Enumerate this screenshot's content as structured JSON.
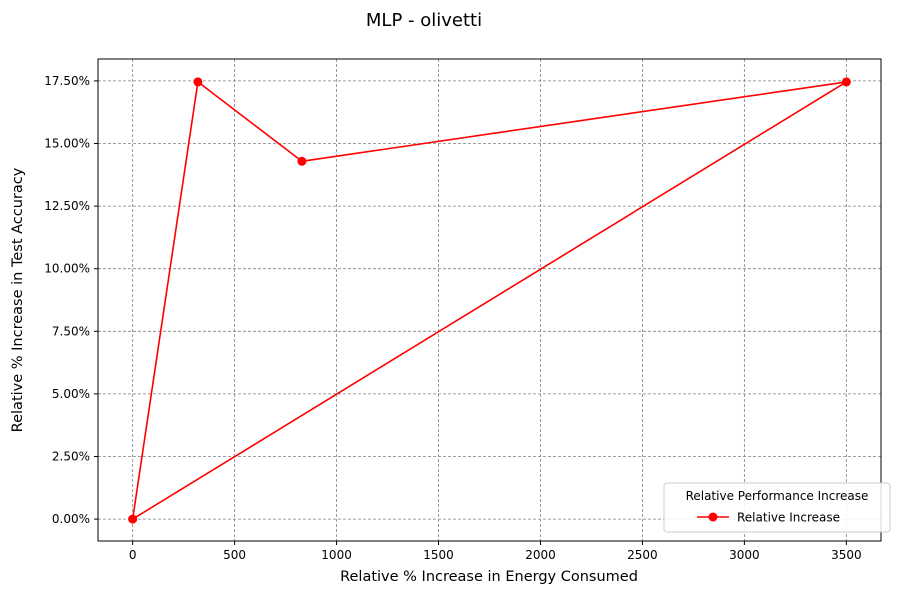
{
  "chart_data": {
    "type": "line",
    "title": "MLP - olivetti",
    "xlabel": "Relative % Increase in Energy Consumed",
    "ylabel": "Relative % Increase in Test Accuracy",
    "xlim": [
      -170,
      3670
    ],
    "ylim": [
      -0.875,
      18.375
    ],
    "xticks": [
      0,
      500,
      1000,
      1500,
      2000,
      2500,
      3000,
      3500
    ],
    "xtick_labels": [
      "0",
      "500",
      "1000",
      "1500",
      "2000",
      "2500",
      "3000",
      "3500"
    ],
    "yticks": [
      0,
      2.5,
      5,
      7.5,
      10,
      12.5,
      15,
      17.5
    ],
    "ytick_labels": [
      "0.00%",
      "2.50%",
      "5.00%",
      "7.50%",
      "10.00%",
      "12.50%",
      "15.00%",
      "17.50%"
    ],
    "grid": true,
    "legend": {
      "title": "Relative Performance Increase",
      "placement": "lower-right"
    },
    "series": [
      {
        "name": "Relative Increase",
        "color": "#ff0000",
        "marker": "circle",
        "x": [
          0,
          320,
          830,
          3500
        ],
        "y": [
          0.0,
          17.46,
          14.29,
          17.46
        ],
        "closed": true
      }
    ]
  }
}
